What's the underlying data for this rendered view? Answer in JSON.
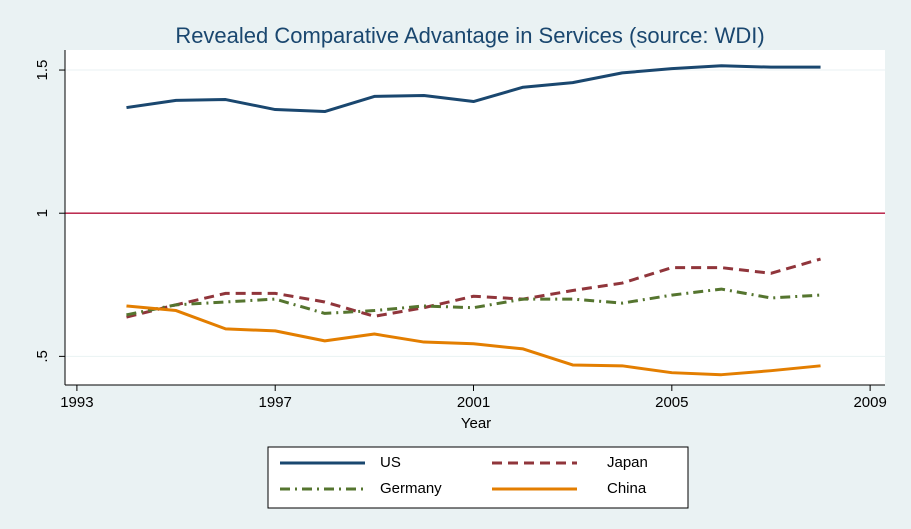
{
  "chart_data": {
    "type": "line",
    "title": "Revealed Comparative Advantage in Services (source: WDI)",
    "x_label": "Year",
    "x": [
      1994,
      1995,
      1996,
      1997,
      1998,
      1999,
      2000,
      2001,
      2002,
      2003,
      2004,
      2005,
      2006,
      2007,
      2008
    ],
    "series": [
      {
        "name": "US",
        "color": "#1a476f",
        "style": "solid",
        "values": [
          1.369,
          1.394,
          1.397,
          1.362,
          1.355,
          1.408,
          1.411,
          1.39,
          1.44,
          1.456,
          1.49,
          1.505,
          1.515,
          1.51,
          1.51
        ]
      },
      {
        "name": "Japan",
        "color": "#90353b",
        "style": "dash",
        "values": [
          0.637,
          0.68,
          0.72,
          0.72,
          0.69,
          0.64,
          0.67,
          0.71,
          0.7,
          0.73,
          0.756,
          0.81,
          0.81,
          0.79,
          0.84
        ]
      },
      {
        "name": "Germany",
        "color": "#55752f",
        "style": "dashdot",
        "values": [
          0.645,
          0.68,
          0.69,
          0.7,
          0.65,
          0.66,
          0.676,
          0.67,
          0.7,
          0.7,
          0.686,
          0.714,
          0.735,
          0.704,
          0.714
        ]
      },
      {
        "name": "China",
        "color": "#e37e00",
        "style": "solid",
        "values": [
          0.676,
          0.66,
          0.596,
          0.589,
          0.554,
          0.578,
          0.55,
          0.544,
          0.526,
          0.47,
          0.467,
          0.443,
          0.436,
          0.45,
          0.467
        ]
      }
    ],
    "reference_line": {
      "value": 1,
      "color": "#b5123a"
    },
    "xlim": [
      1992.76,
      2009.3
    ],
    "xticks": [
      1993,
      1997,
      2001,
      2005,
      2009
    ],
    "ylim": [
      0.4,
      1.57
    ],
    "yticks": [
      {
        "value": 0.5,
        "label": ".5"
      },
      1,
      1.5
    ],
    "grid": true
  }
}
